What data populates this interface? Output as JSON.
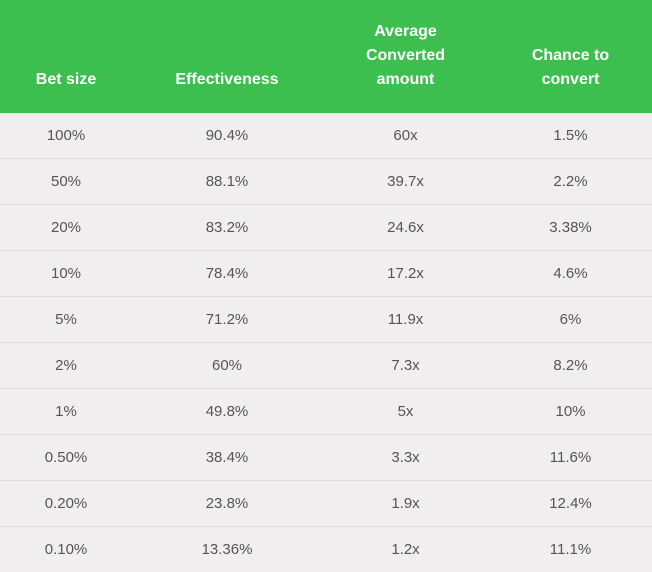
{
  "headers": {
    "bet_size": [
      "Bet size"
    ],
    "effectiveness": [
      "Effectiveness"
    ],
    "avg_converted": [
      "Average",
      "Converted",
      "amount"
    ],
    "chance_to_convert": [
      "Chance to",
      "convert"
    ]
  },
  "rows": [
    {
      "bet_size": "100%",
      "effectiveness": "90.4%",
      "avg_converted": "60x",
      "chance": "1.5%"
    },
    {
      "bet_size": "50%",
      "effectiveness": "88.1%",
      "avg_converted": "39.7x",
      "chance": "2.2%"
    },
    {
      "bet_size": "20%",
      "effectiveness": "83.2%",
      "avg_converted": "24.6x",
      "chance": "3.38%"
    },
    {
      "bet_size": "10%",
      "effectiveness": "78.4%",
      "avg_converted": "17.2x",
      "chance": "4.6%"
    },
    {
      "bet_size": "5%",
      "effectiveness": "71.2%",
      "avg_converted": "11.9x",
      "chance": "6%"
    },
    {
      "bet_size": "2%",
      "effectiveness": "60%",
      "avg_converted": "7.3x",
      "chance": "8.2%"
    },
    {
      "bet_size": "1%",
      "effectiveness": "49.8%",
      "avg_converted": "5x",
      "chance": "10%"
    },
    {
      "bet_size": "0.50%",
      "effectiveness": "38.4%",
      "avg_converted": "3.3x",
      "chance": "11.6%"
    },
    {
      "bet_size": "0.20%",
      "effectiveness": "23.8%",
      "avg_converted": "1.9x",
      "chance": "12.4%"
    },
    {
      "bet_size": "0.10%",
      "effectiveness": "13.36%",
      "avg_converted": "1.2x",
      "chance": "11.1%"
    }
  ],
  "colors": {
    "header_bg": "#3dbf4f",
    "header_text": "#ffffff",
    "body_bg": "#f0eeee",
    "body_text": "#555555",
    "row_divider": "#dedcdc"
  }
}
